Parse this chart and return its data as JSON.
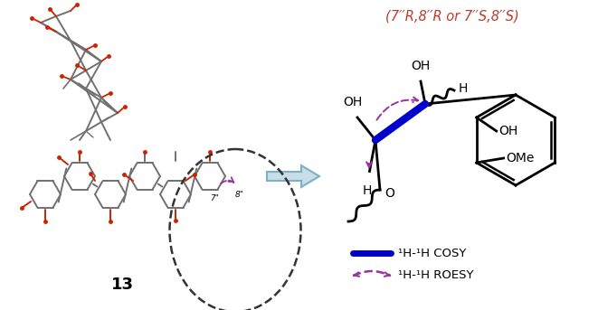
{
  "title_text": "(7′′R,8′′R or 7′′S,8′′S)",
  "title_color": "#c0392b",
  "bg_color": "#ffffff",
  "cosy_color": "#0000cc",
  "roesy_color": "#9b30a0",
  "legend_cosy_label": "¹H-¹H COSY",
  "legend_roesy_label": "¹H-¹H ROESY",
  "arrow_color": "#7ab0c8",
  "label_13": "13"
}
